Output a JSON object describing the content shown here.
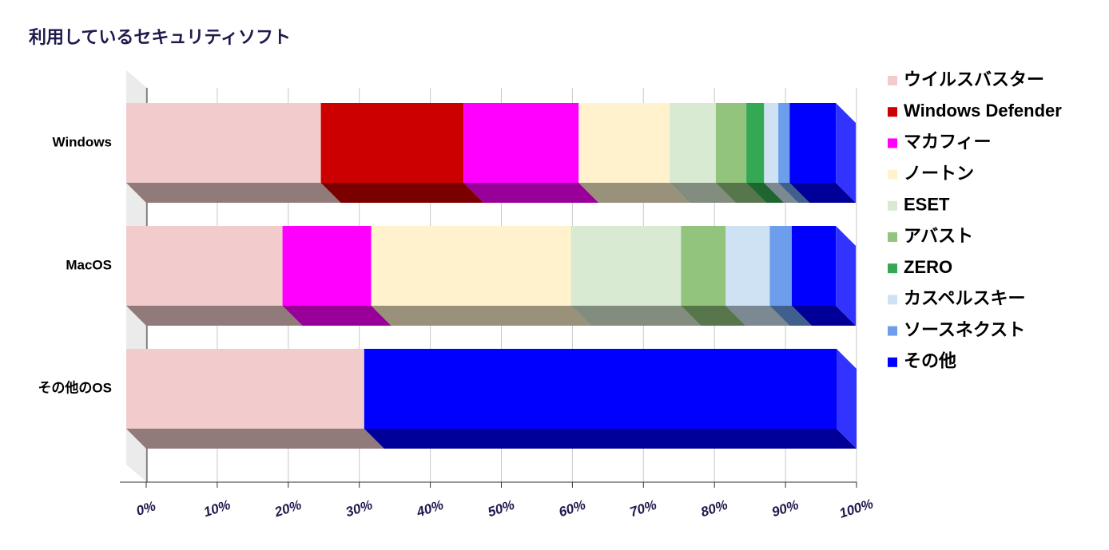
{
  "chart_data": {
    "type": "stacked-bar-3d",
    "title": "利用しているセキュリティソフト",
    "categories": [
      "Windows",
      "MacOS",
      "その他のOS"
    ],
    "series": [
      {
        "name": "ウイルスバスター",
        "color": "#f2cccc",
        "values": [
          27.4,
          22.0,
          33.5
        ]
      },
      {
        "name": "Windows Defender",
        "color": "#cc0000",
        "values": [
          20.1,
          0,
          0
        ]
      },
      {
        "name": "マカフィー",
        "color": "#ff00ff",
        "values": [
          16.2,
          12.5,
          0
        ]
      },
      {
        "name": "ノートン",
        "color": "#fff2cc",
        "values": [
          12.8,
          28.1,
          0
        ]
      },
      {
        "name": "ESET",
        "color": "#d9ead3",
        "values": [
          6.5,
          15.5,
          0
        ]
      },
      {
        "name": "アバスト",
        "color": "#93c47d",
        "values": [
          4.3,
          6.3,
          0
        ]
      },
      {
        "name": "ZERO",
        "color": "#34a853",
        "values": [
          2.5,
          0,
          0
        ]
      },
      {
        "name": "カスペルスキー",
        "color": "#cfe2f3",
        "values": [
          2.0,
          6.2,
          0
        ]
      },
      {
        "name": "ソースネクスト",
        "color": "#6d9eeb",
        "values": [
          1.6,
          3.1,
          0
        ]
      },
      {
        "name": "その他",
        "color": "#0000ff",
        "values": [
          6.5,
          6.2,
          66.5
        ]
      }
    ],
    "xlim": [
      0,
      100
    ],
    "xticks": [
      {
        "value": 0,
        "label": "0%"
      },
      {
        "value": 10,
        "label": "10%"
      },
      {
        "value": 20,
        "label": "20%"
      },
      {
        "value": 30,
        "label": "30%"
      },
      {
        "value": 40,
        "label": "40%"
      },
      {
        "value": 50,
        "label": "50%"
      },
      {
        "value": 60,
        "label": "60%"
      },
      {
        "value": 70,
        "label": "70%"
      },
      {
        "value": 80,
        "label": "80%"
      },
      {
        "value": 90,
        "label": "90%"
      },
      {
        "value": 100,
        "label": "100%"
      }
    ],
    "grid": true,
    "legend": "right"
  }
}
